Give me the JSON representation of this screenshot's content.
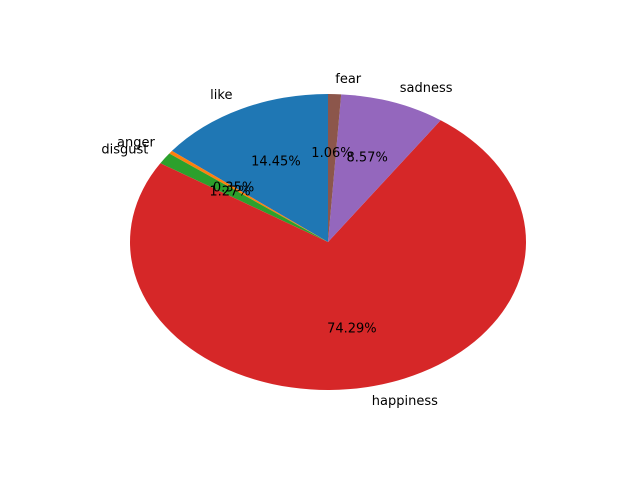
{
  "chart_data": {
    "type": "pie",
    "title": "",
    "start_angle_deg": 90,
    "direction": "counterclockwise",
    "slices": [
      {
        "label": "like",
        "value": 14.45,
        "pct_label": "14.45%",
        "color": "#1f77b4"
      },
      {
        "label": "anger",
        "value": 0.35,
        "pct_label": "0.35%",
        "color": "#ff7f0e"
      },
      {
        "label": "disgust",
        "value": 1.27,
        "pct_label": "1.27%",
        "color": "#2ca02c"
      },
      {
        "label": "happiness",
        "value": 74.29,
        "pct_label": "74.29%",
        "color": "#d62728"
      },
      {
        "label": "sadness",
        "value": 8.57,
        "pct_label": "8.57%",
        "color": "#9467bd"
      },
      {
        "label": "fear",
        "value": 1.06,
        "pct_label": "1.06%",
        "color": "#8c564b"
      }
    ]
  }
}
